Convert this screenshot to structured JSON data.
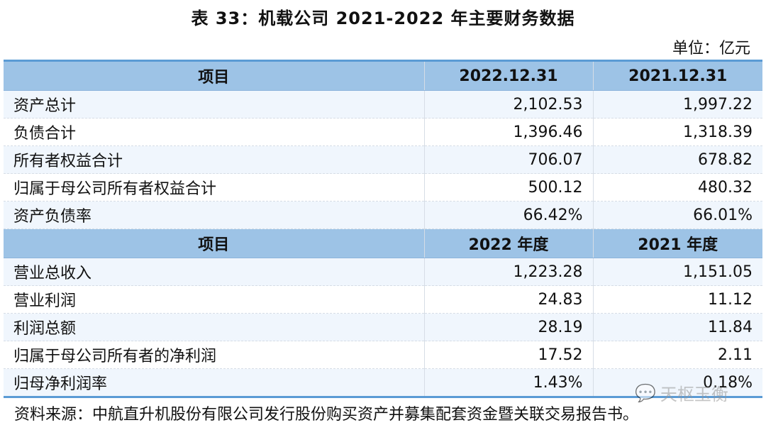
{
  "title": "表 33：机载公司 2021-2022 年主要财务数据",
  "unit": "单位：亿元",
  "section1": {
    "headers": [
      "项目",
      "2022.12.31",
      "2021.12.31"
    ],
    "rows": [
      [
        "资产总计",
        "2,102.53",
        "1,997.22"
      ],
      [
        "负债合计",
        "1,396.46",
        "1,318.39"
      ],
      [
        "所有者权益合计",
        "706.07",
        "678.82"
      ],
      [
        "归属于母公司所有者权益合计",
        "500.12",
        "480.32"
      ],
      [
        "资产负债率",
        "66.42%",
        "66.01%"
      ]
    ]
  },
  "section2": {
    "headers": [
      "项目",
      "2022 年度",
      "2021 年度"
    ],
    "rows": [
      [
        "营业总收入",
        "1,223.28",
        "1,151.05"
      ],
      [
        "营业利润",
        "24.83",
        "11.12"
      ],
      [
        "利润总额",
        "28.19",
        "11.84"
      ],
      [
        "归属于母公司所有者的净利润",
        "17.52",
        "2.11"
      ],
      [
        "归母净利润率",
        "1.43%",
        "0.18%"
      ]
    ]
  },
  "source": "资料来源：中航直升机股份有限公司发行股份购买资产并募集配套资金暨关联交易报告书。",
  "watermark": {
    "icon": "wechat-icon",
    "text": "天枢玉衡"
  },
  "colors": {
    "header": "#9dc3e6",
    "border": "#5b9bd5",
    "row_alt": "#f0f6fd"
  }
}
